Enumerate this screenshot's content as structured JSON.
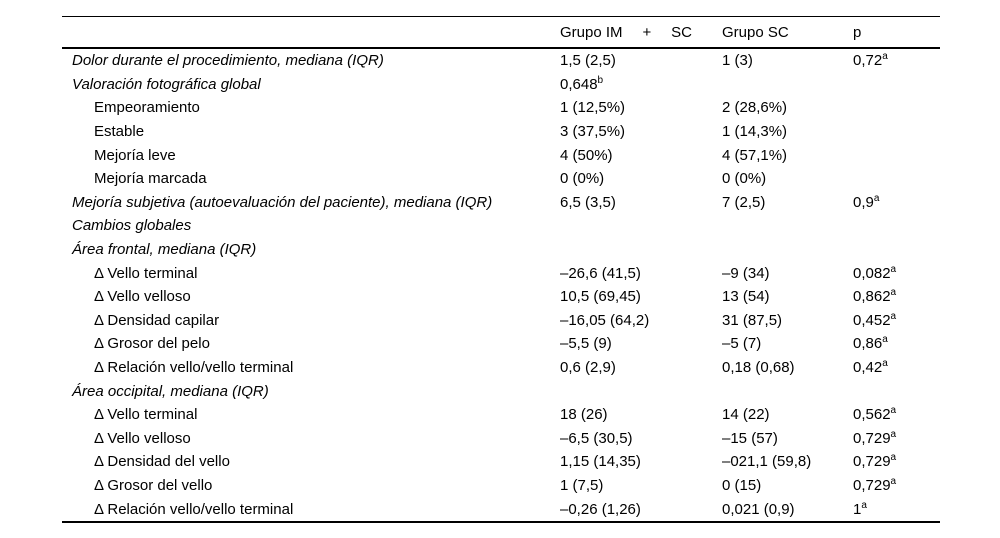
{
  "table": {
    "header": {
      "col2_parts": [
        "Grupo IM",
        "+",
        "SC"
      ],
      "col3": "Grupo SC",
      "col4": "p"
    },
    "rows": [
      {
        "label": "Dolor durante el procedimiento, mediana (IQR)",
        "style": "main",
        "c2": "1,5 (2,5)",
        "c2sup": "",
        "c3": "1 (3)",
        "p": "0,72",
        "psup": "a"
      },
      {
        "label": "Valoración fotográfica global",
        "style": "main",
        "c2": "0,648",
        "c2sup": "b",
        "c3": "",
        "p": "",
        "psup": ""
      },
      {
        "label": "Empeoramiento",
        "style": "sub",
        "c2": "1 (12,5%)",
        "c2sup": "",
        "c3": "2 (28,6%)",
        "p": "",
        "psup": ""
      },
      {
        "label": "Estable",
        "style": "sub",
        "c2": "3 (37,5%)",
        "c2sup": "",
        "c3": "1 (14,3%)",
        "p": "",
        "psup": ""
      },
      {
        "label": "Mejoría leve",
        "style": "sub",
        "c2": "4 (50%)",
        "c2sup": "",
        "c3": "4 (57,1%)",
        "p": "",
        "psup": ""
      },
      {
        "label": "Mejoría marcada",
        "style": "sub",
        "c2": "0 (0%)",
        "c2sup": "",
        "c3": "0 (0%)",
        "p": "",
        "psup": ""
      },
      {
        "label": "Mejoría subjetiva (autoevaluación del paciente), mediana (IQR)",
        "style": "main",
        "c2": "6,5 (3,5)",
        "c2sup": "",
        "c3": "7 (2,5)",
        "p": "0,9",
        "psup": "a"
      },
      {
        "label": "Cambios globales",
        "style": "main",
        "c2": "",
        "c2sup": "",
        "c3": "",
        "p": "",
        "psup": ""
      },
      {
        "label": "Área frontal, mediana (IQR)",
        "style": "main",
        "c2": "",
        "c2sup": "",
        "c3": "",
        "p": "",
        "psup": ""
      },
      {
        "label": "Δ Vello terminal",
        "style": "sub",
        "c2": "–26,6 (41,5)",
        "c2sup": "",
        "c3": "–9 (34)",
        "p": "0,082",
        "psup": "a"
      },
      {
        "label": "Δ Vello velloso",
        "style": "sub",
        "c2": "10,5 (69,45)",
        "c2sup": "",
        "c3": "13 (54)",
        "p": "0,862",
        "psup": "a"
      },
      {
        "label": "Δ Densidad capilar",
        "style": "sub",
        "c2": "–16,05 (64,2)",
        "c2sup": "",
        "c3": "31 (87,5)",
        "p": "0,452",
        "psup": "a"
      },
      {
        "label": "Δ Grosor del pelo",
        "style": "sub",
        "c2": "–5,5 (9)",
        "c2sup": "",
        "c3": "–5 (7)",
        "p": "0,86",
        "psup": "a"
      },
      {
        "label": "Δ Relación vello/vello terminal",
        "style": "sub",
        "c2": "0,6 (2,9)",
        "c2sup": "",
        "c3": "0,18 (0,68)",
        "p": "0,42",
        "psup": "a"
      },
      {
        "label": "Área occipital, mediana (IQR)",
        "style": "main",
        "c2": "",
        "c2sup": "",
        "c3": "",
        "p": "",
        "psup": ""
      },
      {
        "label": "Δ Vello terminal",
        "style": "sub",
        "c2": "18 (26)",
        "c2sup": "",
        "c3": "14 (22)",
        "p": "0,562",
        "psup": "a"
      },
      {
        "label": "Δ Vello velloso",
        "style": "sub",
        "c2": "–6,5 (30,5)",
        "c2sup": "",
        "c3": "–15 (57)",
        "p": "0,729",
        "psup": "a"
      },
      {
        "label": "Δ Densidad del vello",
        "style": "sub",
        "c2": "1,15 (14,35)",
        "c2sup": "",
        "c3": "–021,1 (59,8)",
        "p": "0,729",
        "psup": "a"
      },
      {
        "label": "Δ Grosor del vello",
        "style": "sub",
        "c2": "1 (7,5)",
        "c2sup": "",
        "c3": "0 (15)",
        "p": "0,729",
        "psup": "a"
      },
      {
        "label": "Δ Relación vello/vello terminal",
        "style": "sub",
        "c2": "–0,26 (1,26)",
        "c2sup": "",
        "c3": "0,021 (0,9)",
        "p": "1",
        "psup": "a"
      }
    ]
  }
}
